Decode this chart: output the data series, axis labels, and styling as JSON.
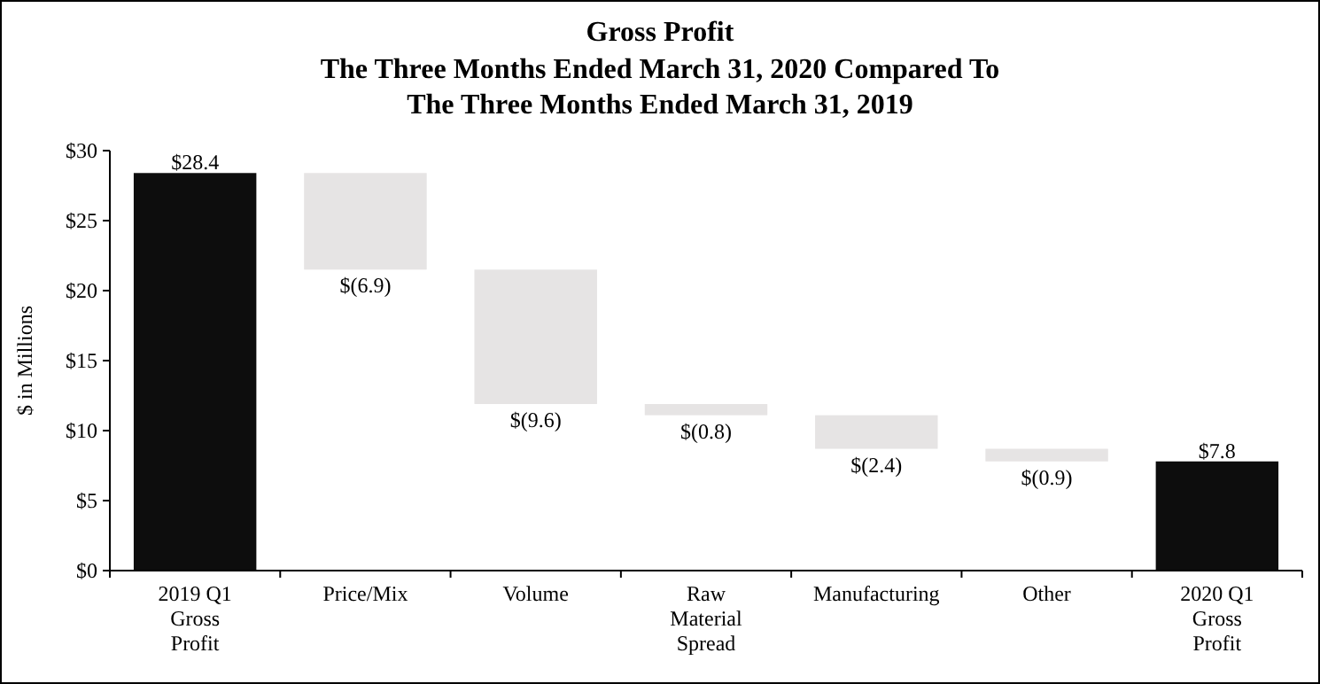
{
  "chart_data": {
    "type": "bar",
    "title": "Gross Profit",
    "subtitle": "The Three Months Ended March 31, 2020 Compared To The Three Months Ended March 31, 2019",
    "ylabel": "$ in Millions",
    "categories": [
      "2019 Q1 Gross Profit",
      "Price/Mix",
      "Volume",
      "Raw Material Spread",
      "Manufacturing",
      "Other",
      "2020 Q1 Gross Profit"
    ],
    "values": [
      28.4,
      -6.9,
      -9.6,
      -0.8,
      -2.4,
      -0.9,
      7.8
    ],
    "base": [
      0,
      28.4,
      21.5,
      11.9,
      11.1,
      8.7,
      0
    ],
    "colors": [
      "#0d0d0d",
      "#e6e4e4",
      "#e6e4e4",
      "#e6e4e4",
      "#e6e4e4",
      "#e6e4e4",
      "#0d0d0d"
    ],
    "value_labels": [
      "$28.4",
      "$(6.9)",
      "$(9.6)",
      "$(0.8)",
      "$(2.4)",
      "$(0.9)",
      "$7.8"
    ],
    "ylim": [
      0,
      30
    ],
    "yticks": [
      {
        "value": 0,
        "label": "$0"
      },
      {
        "value": 5,
        "label": "$5"
      },
      {
        "value": 10,
        "label": "$10"
      },
      {
        "value": 15,
        "label": "$15"
      },
      {
        "value": 20,
        "label": "$20"
      },
      {
        "value": 25,
        "label": "$25"
      },
      {
        "value": 30,
        "label": "$30"
      }
    ],
    "grid": false
  }
}
